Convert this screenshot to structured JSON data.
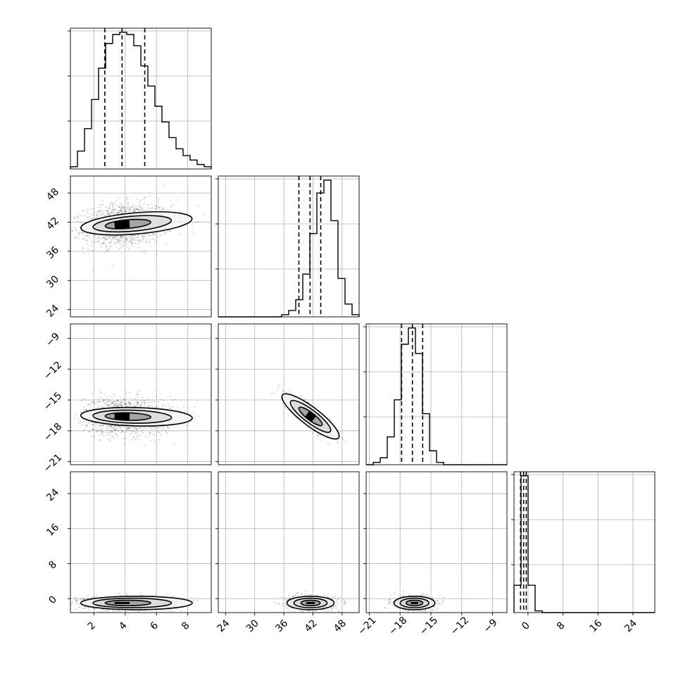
{
  "chart_data": {
    "type": "corner",
    "grid": true,
    "parameters": [
      {
        "range": [
          0.5,
          9.5
        ],
        "ticks": [
          2,
          4,
          6,
          8
        ],
        "tick_labels": [
          "2",
          "4",
          "6",
          "8"
        ],
        "quantiles": [
          2.7,
          3.8,
          5.25
        ],
        "mode": 3.8,
        "sigma": 1.2
      },
      {
        "range": [
          22.5,
          51.5
        ],
        "ticks": [
          24,
          30,
          36,
          42,
          48
        ],
        "tick_labels": [
          "24",
          "30",
          "36",
          "42",
          "48"
        ],
        "quantiles": [
          39.1,
          41.4,
          43.6
        ],
        "mode": 41.5,
        "sigma": 2.2
      },
      {
        "range": [
          -21.3,
          -7.6
        ],
        "ticks": [
          -21,
          -18,
          -15,
          -12,
          -9
        ],
        "tick_labels": [
          "−21",
          "−18",
          "−15",
          "−12",
          "−9"
        ],
        "quantiles": [
          -17.85,
          -16.8,
          -15.8
        ],
        "mode": -16.6,
        "sigma": 0.9
      },
      {
        "range": [
          -3.2,
          29.0
        ],
        "ticks": [
          0,
          8,
          16,
          24
        ],
        "tick_labels": [
          "0",
          "8",
          "16",
          "24"
        ],
        "quantiles": [
          -1.7,
          -1.0,
          -0.4
        ],
        "mode": -1.0,
        "sigma": 0.7
      }
    ],
    "histograms": [
      {
        "parameter": 0,
        "bin_values": [
          1,
          8,
          18,
          31,
          45,
          56,
          60,
          61,
          60,
          55,
          46,
          37,
          28,
          21,
          14,
          9,
          6,
          4,
          2,
          1
        ]
      },
      {
        "parameter": 1,
        "bin_values": [
          0,
          0,
          0,
          0,
          0,
          0,
          0,
          0,
          0,
          1,
          3,
          8,
          20,
          39,
          58,
          64,
          45,
          18,
          6,
          1
        ]
      },
      {
        "parameter": 2,
        "bin_values": [
          0,
          1,
          3,
          12,
          28,
          52,
          59,
          48,
          22,
          6,
          1,
          0,
          0,
          0,
          0,
          0,
          0,
          0,
          0,
          0
        ]
      },
      {
        "parameter": 3,
        "bin_values": [
          16,
          80,
          16,
          1,
          0,
          0,
          0,
          0,
          0,
          0,
          0,
          0,
          0,
          0,
          0,
          0,
          0,
          0,
          0,
          0
        ]
      }
    ],
    "pairs": [
      {
        "x": 0,
        "y": 1,
        "correlation": 0.15
      },
      {
        "x": 0,
        "y": 2,
        "correlation": -0.05
      },
      {
        "x": 1,
        "y": 2,
        "correlation": -0.88
      },
      {
        "x": 0,
        "y": 3,
        "correlation": 0.0
      },
      {
        "x": 1,
        "y": 3,
        "correlation": 0.0
      },
      {
        "x": 2,
        "y": 3,
        "correlation": 0.0
      }
    ]
  }
}
